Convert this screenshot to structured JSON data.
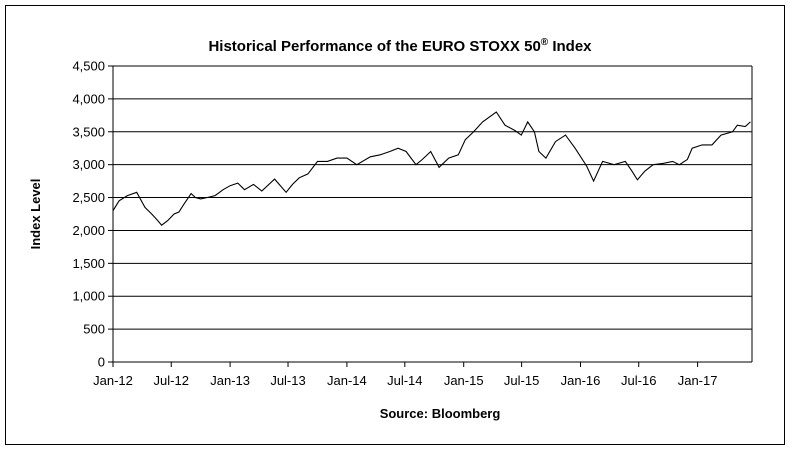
{
  "chart_data": {
    "type": "line",
    "title": "Historical Performance of the EURO STOXX 50",
    "title_mark": "®",
    "title_suffix": " Index",
    "xlabel": "",
    "ylabel": "Index Level",
    "source": "Source:  Bloomberg",
    "ylim": [
      0,
      4500
    ],
    "yticks": [
      0,
      500,
      1000,
      1500,
      2000,
      2500,
      3000,
      3500,
      4000,
      4500
    ],
    "ytick_labels": [
      "0",
      "500",
      "1,000",
      "1,500",
      "2,000",
      "2,500",
      "3,000",
      "3,500",
      "4,000",
      "4,500"
    ],
    "xlim": [
      "2012-01-01",
      "2017-06-20"
    ],
    "xticks": [
      "2012-01-01",
      "2012-07-01",
      "2013-01-01",
      "2013-07-01",
      "2014-01-01",
      "2014-07-01",
      "2015-01-01",
      "2015-07-01",
      "2016-01-01",
      "2016-07-01",
      "2017-01-01"
    ],
    "xtick_labels": [
      "Jan-12",
      "Jul-12",
      "Jan-13",
      "Jul-13",
      "Jan-14",
      "Jul-14",
      "Jan-15",
      "Jul-15",
      "Jan-16",
      "Jul-16",
      "Jan-17"
    ],
    "grid": "horizontal",
    "series": [
      {
        "color": "#000000",
        "x": [
          "2012-01-01",
          "2012-01-20",
          "2012-02-15",
          "2012-03-15",
          "2012-04-10",
          "2012-05-01",
          "2012-05-20",
          "2012-06-01",
          "2012-06-20",
          "2012-07-10",
          "2012-07-25",
          "2012-08-10",
          "2012-09-01",
          "2012-09-15",
          "2012-10-01",
          "2012-10-20",
          "2012-11-15",
          "2012-12-10",
          "2013-01-01",
          "2013-01-25",
          "2013-02-15",
          "2013-03-15",
          "2013-04-10",
          "2013-05-20",
          "2013-06-25",
          "2013-07-15",
          "2013-08-05",
          "2013-09-01",
          "2013-10-01",
          "2013-11-01",
          "2013-12-01",
          "2014-01-01",
          "2014-02-01",
          "2014-03-15",
          "2014-04-15",
          "2014-05-15",
          "2014-06-10",
          "2014-07-05",
          "2014-08-05",
          "2014-08-25",
          "2014-09-20",
          "2014-10-16",
          "2014-11-15",
          "2014-12-15",
          "2015-01-06",
          "2015-02-01",
          "2015-03-01",
          "2015-04-13",
          "2015-05-10",
          "2015-06-10",
          "2015-06-30",
          "2015-07-20",
          "2015-08-10",
          "2015-08-24",
          "2015-09-15",
          "2015-10-15",
          "2015-11-15",
          "2015-12-15",
          "2016-01-20",
          "2016-02-11",
          "2016-03-10",
          "2016-04-15",
          "2016-05-20",
          "2016-06-10",
          "2016-06-27",
          "2016-07-20",
          "2016-08-15",
          "2016-09-15",
          "2016-10-15",
          "2016-11-05",
          "2016-11-30",
          "2016-12-15",
          "2017-01-15",
          "2017-02-15",
          "2017-03-15",
          "2017-04-20",
          "2017-05-05",
          "2017-05-30",
          "2017-06-15"
        ],
        "values": [
          2300,
          2450,
          2530,
          2580,
          2350,
          2250,
          2150,
          2080,
          2150,
          2250,
          2280,
          2400,
          2560,
          2500,
          2480,
          2500,
          2530,
          2620,
          2680,
          2720,
          2620,
          2700,
          2600,
          2780,
          2580,
          2700,
          2800,
          2860,
          3050,
          3050,
          3100,
          3100,
          3000,
          3120,
          3150,
          3200,
          3250,
          3200,
          3000,
          3080,
          3200,
          2960,
          3100,
          3150,
          3380,
          3500,
          3650,
          3800,
          3600,
          3520,
          3450,
          3650,
          3500,
          3200,
          3100,
          3350,
          3450,
          3250,
          2980,
          2750,
          3050,
          3000,
          3050,
          2900,
          2770,
          2900,
          3000,
          3020,
          3050,
          3000,
          3080,
          3250,
          3300,
          3300,
          3450,
          3500,
          3600,
          3580,
          3650
        ]
      }
    ]
  }
}
